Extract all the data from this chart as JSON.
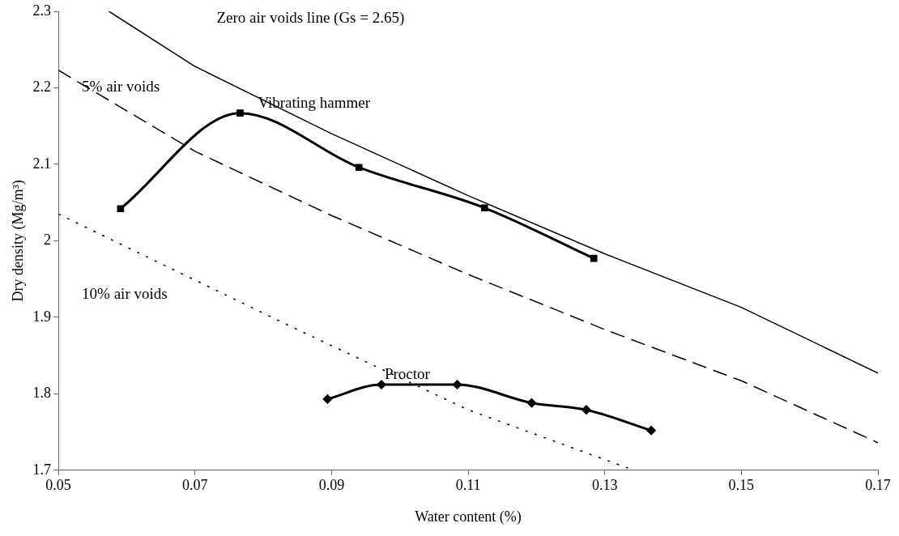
{
  "chart_data": {
    "type": "line",
    "xlabel": "Water content (%)",
    "ylabel": "Dry density (Mg/m³)",
    "xlim": [
      0.05,
      0.17
    ],
    "xticks": [
      0.05,
      0.07,
      0.09,
      0.11,
      0.13,
      0.15,
      0.17
    ],
    "ylim": [
      1.7,
      2.3
    ],
    "yticks": [
      {
        "value": 1.7,
        "label": "1.7"
      },
      {
        "value": 1.8,
        "label": "1.8"
      },
      {
        "value": 1.9,
        "label": "1.9"
      },
      {
        "value": 2.0,
        "label": "2"
      },
      {
        "value": 2.1,
        "label": "2.1"
      },
      {
        "value": 2.2,
        "label": "2.2"
      },
      {
        "value": 2.3,
        "label": "2.3"
      }
    ],
    "grid": false,
    "legend": false,
    "series": [
      {
        "name": "Zero air voids line (Gs = 2.65)",
        "color": "#000000",
        "line_style": "solid",
        "marker": "none",
        "x": [
          0.0574,
          0.07,
          0.09,
          0.11,
          0.13,
          0.15,
          0.17
        ],
        "values": [
          2.3,
          2.228,
          2.14,
          2.059,
          1.983,
          1.913,
          1.827
        ]
      },
      {
        "name": "5% air voids",
        "color": "#000000",
        "line_style": "dashed",
        "marker": "none",
        "x": [
          0.05,
          0.07,
          0.09,
          0.11,
          0.13,
          0.15,
          0.17
        ],
        "values": [
          2.223,
          2.117,
          2.033,
          1.956,
          1.884,
          1.817,
          1.736
        ]
      },
      {
        "name": "10% air voids",
        "color": "#000000",
        "line_style": "dotted",
        "marker": "none",
        "x": [
          0.05,
          0.0845,
          0.11,
          0.1343
        ],
        "values": [
          2.035,
          1.886,
          1.779,
          1.7
        ]
      },
      {
        "name": "Vibrating hammer",
        "color": "#000000",
        "line_style": "solid",
        "marker": "square",
        "x": [
          0.0591,
          0.0766,
          0.094,
          0.1124,
          0.1284
        ],
        "values": [
          2.042,
          2.167,
          2.096,
          2.043,
          1.977
        ]
      },
      {
        "name": "Proctor",
        "color": "#000000",
        "line_style": "solid",
        "marker": "diamond",
        "x": [
          0.0894,
          0.0973,
          0.1084,
          0.1193,
          0.1273,
          0.1368
        ],
        "values": [
          1.793,
          1.812,
          1.812,
          1.788,
          1.779,
          1.752
        ]
      }
    ]
  }
}
